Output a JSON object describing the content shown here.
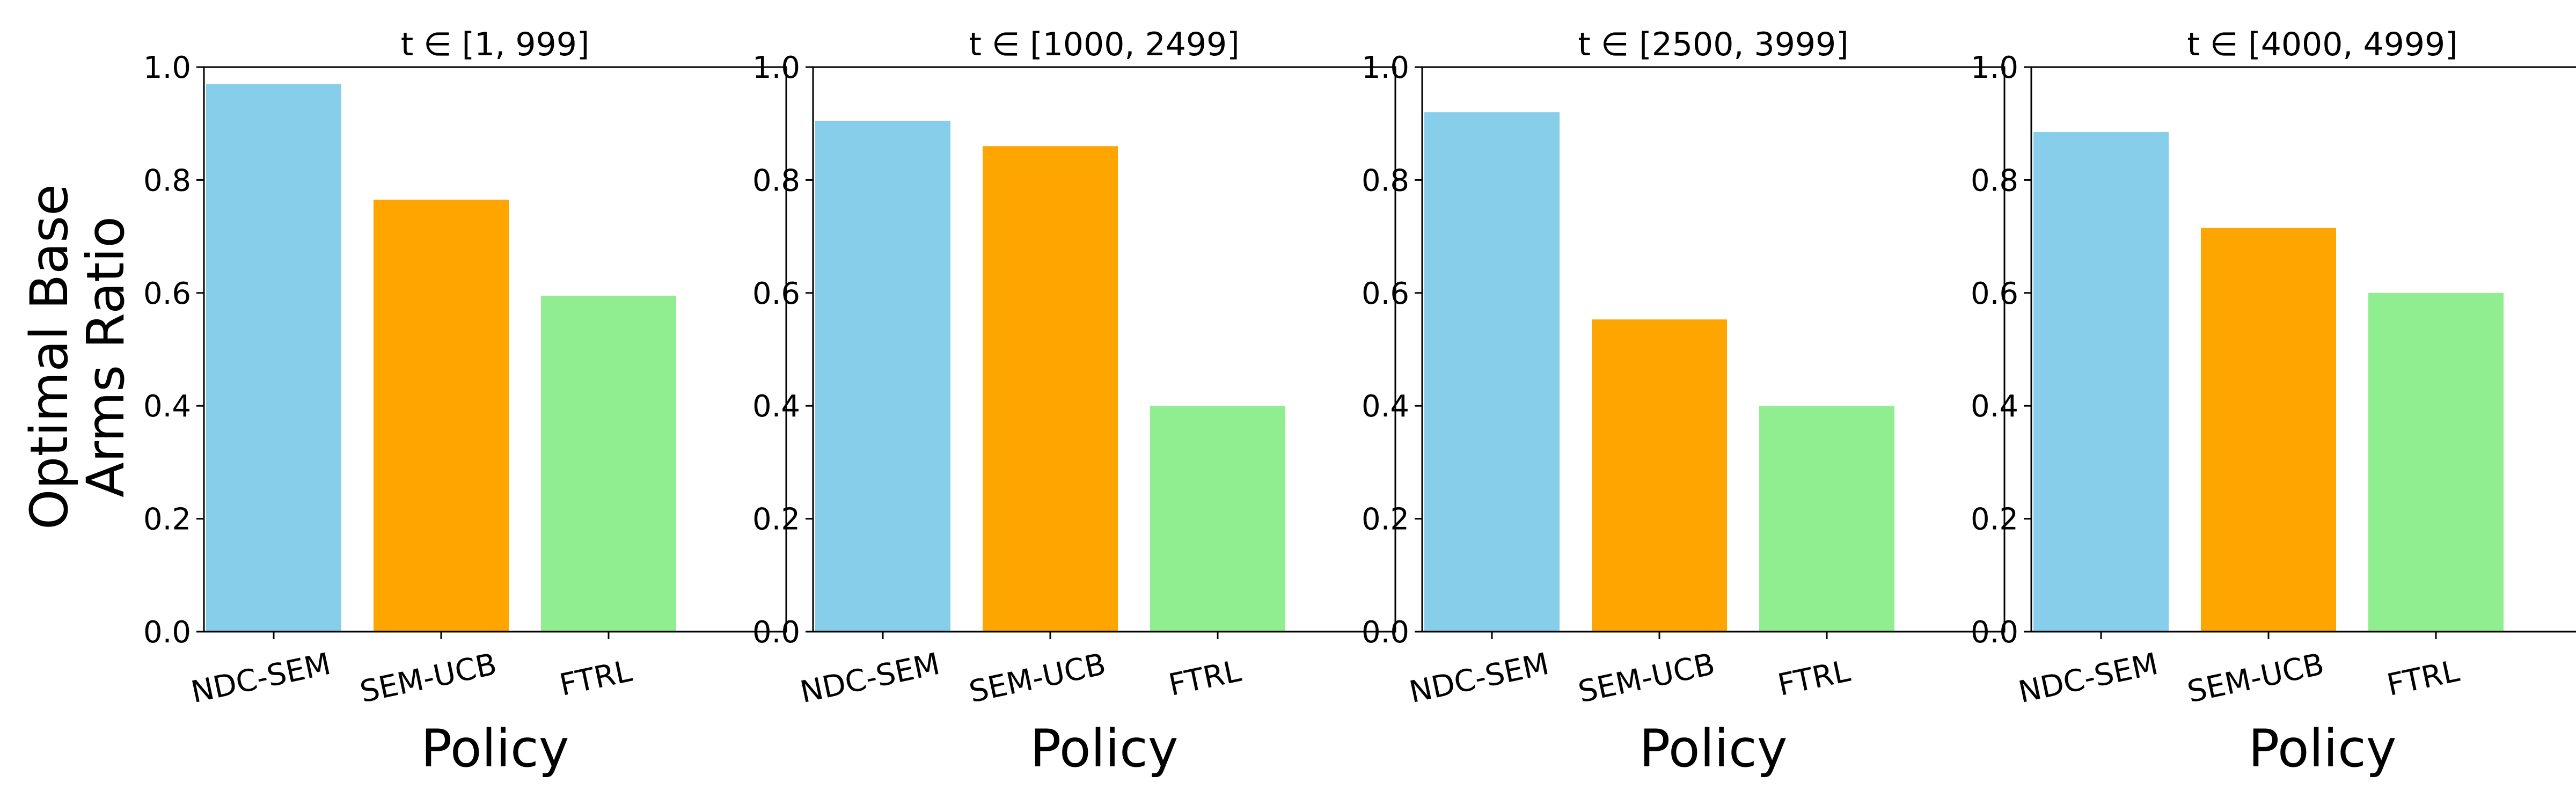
{
  "chart_data": {
    "type": "bar",
    "ylabel_lines": [
      "Optimal Base",
      "Arms Ratio"
    ],
    "xlabel": "Policy",
    "categories": [
      "NDC-SEM",
      "SEM-UCB",
      "FTRL"
    ],
    "colors": [
      "#87CEEB",
      "#FFA500",
      "#90EE90"
    ],
    "ylim": [
      0.0,
      1.0
    ],
    "yticks": [
      "0.0",
      "0.2",
      "0.4",
      "0.6",
      "0.8",
      "1.0"
    ],
    "grid": false,
    "panels": [
      {
        "title": "t ∈ [1, 999]",
        "values": [
          0.97,
          0.765,
          0.595
        ]
      },
      {
        "title": "t ∈ [1000, 2499]",
        "values": [
          0.905,
          0.86,
          0.4
        ]
      },
      {
        "title": "t ∈ [2500, 3999]",
        "values": [
          0.92,
          0.553,
          0.4
        ]
      },
      {
        "title": "t ∈ [4000, 4999]",
        "values": [
          0.885,
          0.715,
          0.6
        ]
      }
    ]
  }
}
